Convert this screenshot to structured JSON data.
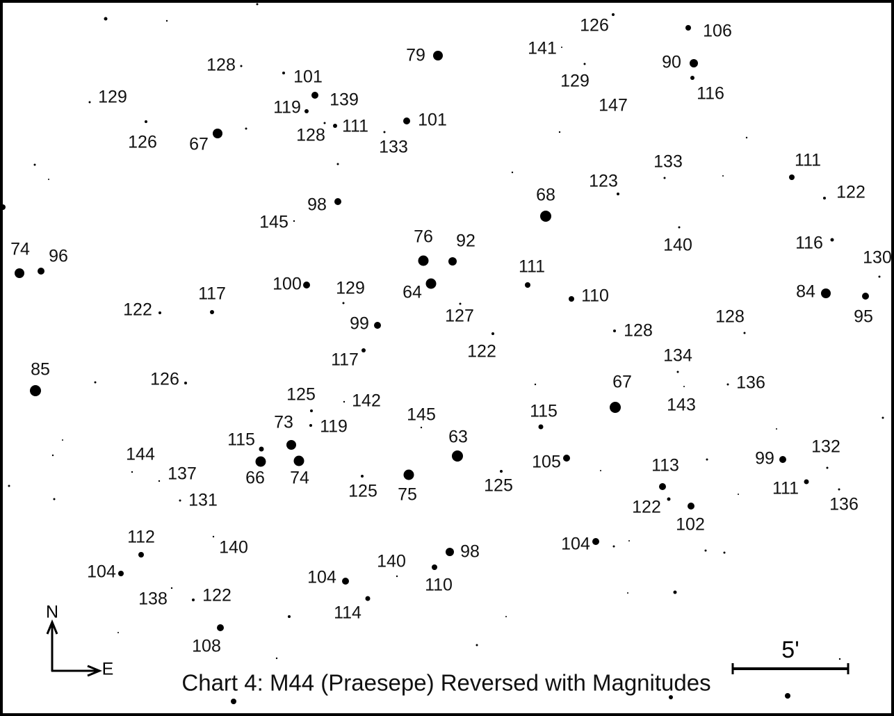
{
  "title": "Chart 4: M44 (Praesepe) Reversed with Magnitudes",
  "compass": {
    "north": "N",
    "east": "E"
  },
  "scale_bar": "5'",
  "labels": [
    126,
    106,
    141,
    90,
    129,
    116,
    147,
    79,
    128,
    101,
    129,
    119,
    139,
    128,
    111,
    101,
    133,
    126,
    67,
    133,
    111,
    123,
    122,
    68,
    98,
    145,
    140,
    74,
    96,
    76,
    92,
    116,
    130,
    111,
    100,
    129,
    64,
    110,
    84,
    95,
    122,
    117,
    127,
    99,
    128,
    128,
    122,
    117,
    134,
    85,
    126,
    67,
    136,
    143,
    125,
    142,
    145,
    115,
    73,
    119,
    115,
    63,
    144,
    105,
    99,
    132,
    66,
    74,
    137,
    113,
    75,
    125,
    125,
    111,
    131,
    122,
    102,
    136,
    112,
    140,
    104,
    98,
    104,
    140,
    104,
    110,
    138,
    122,
    114,
    108
  ]
}
